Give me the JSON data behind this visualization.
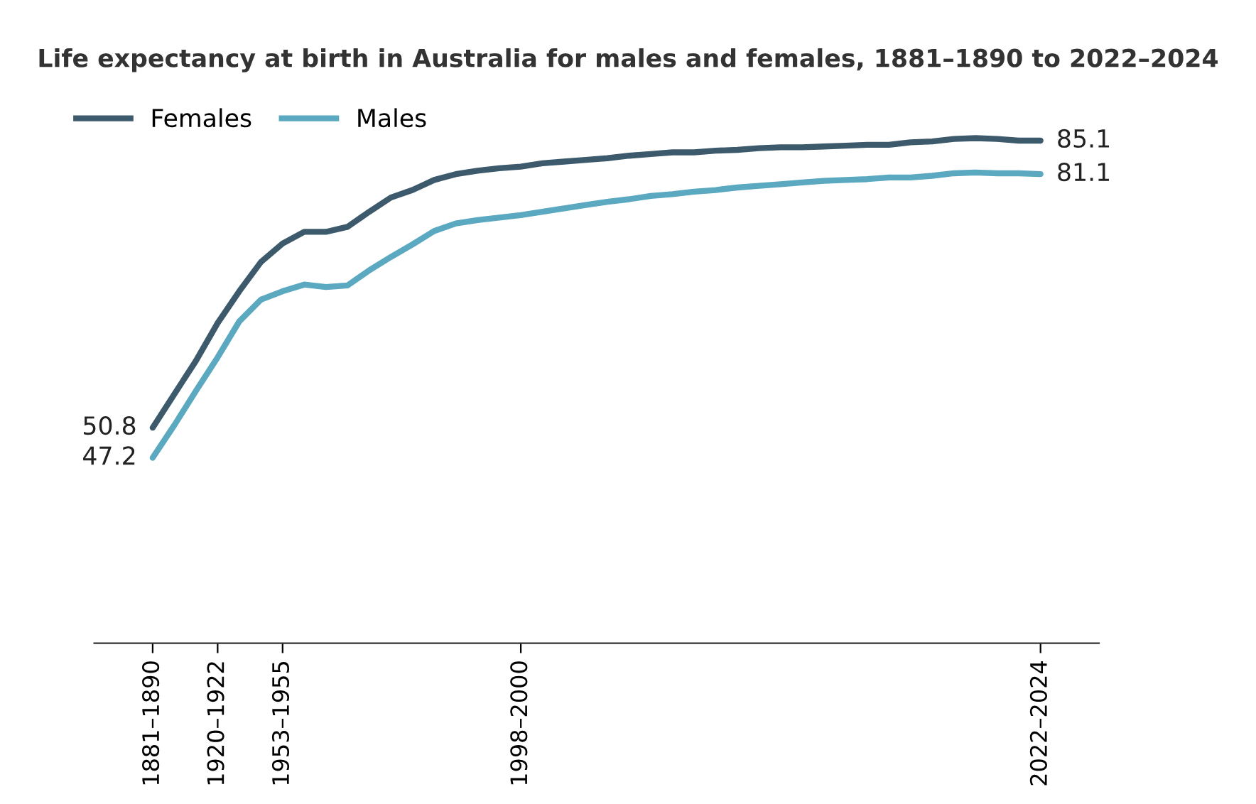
{
  "chart_data": {
    "type": "line",
    "title": "Life expectancy at birth in Australia for males and females, 1881–1890 to 2022–2024",
    "categories": [
      "1881–1890",
      null,
      null,
      "1920–1922",
      null,
      null,
      "1953–1955",
      null,
      null,
      null,
      null,
      null,
      null,
      null,
      null,
      null,
      null,
      "1998–2000",
      null,
      null,
      null,
      null,
      null,
      null,
      null,
      null,
      null,
      null,
      null,
      null,
      null,
      null,
      null,
      null,
      null,
      null,
      null,
      null,
      null,
      null,
      null,
      "2022–2024"
    ],
    "tick_labels": "x",
    "grid": false,
    "legend": "top left",
    "marker": "none",
    "line_style": "solid",
    "series": [
      {
        "name": "Females",
        "color": "#3d5a6c",
        "values": [
          50.8,
          54.8,
          58.8,
          63.3,
          67.1,
          70.6,
          72.8,
          74.2,
          74.2,
          74.8,
          76.6,
          78.3,
          79.2,
          80.4,
          81.1,
          81.5,
          81.8,
          82.0,
          82.4,
          82.6,
          82.8,
          83.0,
          83.3,
          83.5,
          83.7,
          83.7,
          83.9,
          84.0,
          84.2,
          84.3,
          84.3,
          84.4,
          84.5,
          84.6,
          84.6,
          84.9,
          85.0,
          85.3,
          85.4,
          85.3,
          85.1,
          85.1
        ],
        "value_labels": [
          "50.8",
          null,
          null,
          null,
          null,
          null,
          null,
          null,
          null,
          null,
          null,
          null,
          null,
          null,
          null,
          null,
          null,
          null,
          null,
          null,
          null,
          null,
          null,
          null,
          null,
          null,
          null,
          null,
          null,
          null,
          null,
          null,
          null,
          null,
          null,
          null,
          null,
          null,
          null,
          null,
          null,
          "85.1"
        ]
      },
      {
        "name": "Males",
        "color": "#5aa9c0",
        "values": [
          47.2,
          51.1,
          55.2,
          59.2,
          63.5,
          66.1,
          67.1,
          67.9,
          67.6,
          67.8,
          69.6,
          71.2,
          72.7,
          74.3,
          75.2,
          75.6,
          75.9,
          76.2,
          76.6,
          77.0,
          77.4,
          77.8,
          78.1,
          78.5,
          78.7,
          79.0,
          79.2,
          79.5,
          79.7,
          79.9,
          80.1,
          80.3,
          80.4,
          80.5,
          80.7,
          80.7,
          80.9,
          81.2,
          81.3,
          81.2,
          81.2,
          81.1
        ],
        "value_labels": [
          "47.2",
          null,
          null,
          null,
          null,
          null,
          null,
          null,
          null,
          null,
          null,
          null,
          null,
          null,
          null,
          null,
          null,
          null,
          null,
          null,
          null,
          null,
          null,
          null,
          null,
          null,
          null,
          null,
          null,
          null,
          null,
          null,
          null,
          null,
          null,
          null,
          null,
          null,
          null,
          null,
          null,
          "81.1"
        ]
      }
    ]
  }
}
